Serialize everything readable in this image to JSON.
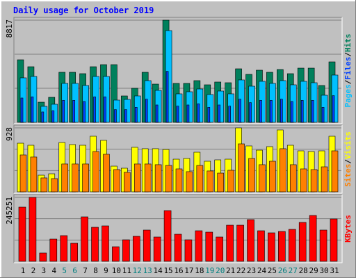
{
  "chart_data": {
    "type": "bar",
    "title": "Daily usage for October 2019",
    "categories": [
      "1",
      "2",
      "3",
      "4",
      "5",
      "6",
      "7",
      "8",
      "9",
      "10",
      "11",
      "12",
      "13",
      "14",
      "15",
      "16",
      "17",
      "18",
      "19",
      "20",
      "21",
      "22",
      "23",
      "24",
      "25",
      "26",
      "27",
      "28",
      "29",
      "30",
      "31"
    ],
    "category_colors": [
      "#000000",
      "#000000",
      "#000000",
      "#000000",
      "#008080",
      "#008080",
      "#000000",
      "#000000",
      "#000000",
      "#000000",
      "#000000",
      "#008080",
      "#008080",
      "#000000",
      "#000000",
      "#000000",
      "#000000",
      "#000000",
      "#008080",
      "#008080",
      "#000000",
      "#000000",
      "#000000",
      "#000000",
      "#000000",
      "#008080",
      "#008080",
      "#000000",
      "#000000",
      "#000000",
      "#000000"
    ],
    "legend_separator": "/",
    "panels": [
      {
        "ylim": [
          0,
          8817
        ],
        "yticks": [
          8817
        ],
        "ygrid": [
          2939,
          5878
        ],
        "series": [
          {
            "name": "Hits",
            "color": "#00805c",
            "values": [
              5398,
              4798,
              1739,
              2159,
              4319,
              4319,
              4199,
              4798,
              4978,
              4978,
              2279,
              2939,
              4319,
              3299,
              8817,
              3359,
              3359,
              3599,
              3239,
              3479,
              3419,
              4619,
              4139,
              4499,
              4319,
              4559,
              4199,
              4678,
              4678,
              3179,
              5218
            ]
          },
          {
            "name": "Pages",
            "color": "#00c0ff",
            "values": [
              3839,
              3959,
              1380,
              1560,
              3359,
              3359,
              3179,
              3959,
              3959,
              1919,
              1979,
              2279,
              3599,
              2759,
              7917,
              2459,
              2639,
              2879,
              2399,
              2699,
              2459,
              3659,
              3119,
              3539,
              3359,
              3599,
              3239,
              3539,
              3419,
              2339,
              4079
            ]
          },
          {
            "name": "Files",
            "color": "#0040ff",
            "values": [
              2100,
              2200,
              900,
              1000,
              1900,
              1900,
              1800,
              2200,
              2200,
              1100,
              1100,
              1300,
              2000,
              1500,
              4400,
              1400,
              1500,
              1600,
              1300,
              1500,
              1400,
              2000,
              1700,
              1900,
              1900,
              2000,
              1800,
              1900,
              1900,
              1300,
              2300
            ]
          }
        ]
      },
      {
        "ylim": [
          0,
          928
        ],
        "yticks": [
          928
        ],
        "ygrid": [
          309,
          619
        ],
        "series": [
          {
            "name": "Visits",
            "color": "#ffff00",
            "values": [
              706,
              676,
              242,
              262,
              716,
              686,
              676,
              807,
              747,
              373,
              343,
              646,
              626,
              626,
              615,
              474,
              484,
              575,
              444,
              464,
              474,
              928,
              666,
              605,
              656,
              898,
              676,
              595,
              585,
              595,
              807
            ]
          },
          {
            "name": "Sites",
            "color": "#ff8000",
            "values": [
              535,
              505,
              202,
              192,
              404,
              404,
              404,
              585,
              545,
              323,
              283,
              404,
              404,
              394,
              383,
              333,
              293,
              383,
              303,
              272,
              313,
              696,
              484,
              394,
              444,
              626,
              394,
              333,
              323,
              363,
              595
            ]
          }
        ]
      },
      {
        "ylim": [
          0,
          245251
        ],
        "yticks": [
          245251
        ],
        "ygrid": [
          81750,
          163501
        ],
        "series": [
          {
            "name": "KBytes",
            "color": "#ff0000",
            "values": [
              207932,
              245251,
              31990,
              85306,
              98634,
              69311,
              170611,
              130624,
              135956,
              55982,
              82640,
              95969,
              119960,
              93302,
              194603,
              103966,
              82640,
              117295,
              111963,
              93302,
              138621,
              138621,
              159948,
              117295,
              109298,
              114629,
              122627,
              149285,
              175943,
              119960,
              162614
            ]
          }
        ]
      }
    ]
  }
}
